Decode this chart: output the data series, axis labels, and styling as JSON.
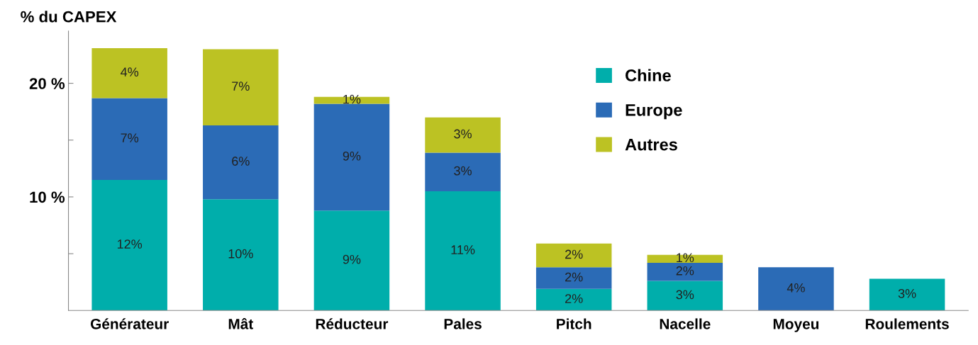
{
  "chart_data": {
    "type": "bar",
    "stacked": true,
    "ylabel": "% du CAPEX",
    "categories": [
      "Générateur",
      "Mât",
      "Réducteur",
      "Pales",
      "Pitch",
      "Nacelle",
      "Moyeu",
      "Roulements"
    ],
    "series": [
      {
        "name": "Chine",
        "color": "#00aeab",
        "values": [
          11.5,
          9.8,
          8.8,
          10.5,
          1.9,
          2.6,
          null,
          2.8
        ],
        "value_labels": [
          "12%",
          "10%",
          "9%",
          "11%",
          "2%",
          "3%",
          null,
          "3%"
        ]
      },
      {
        "name": "Europe",
        "color": "#2b6bb6",
        "values": [
          7.2,
          6.5,
          9.4,
          3.4,
          1.9,
          1.6,
          3.8,
          null
        ],
        "value_labels": [
          "7%",
          "6%",
          "9%",
          "3%",
          "2%",
          "2%",
          "4%",
          null
        ]
      },
      {
        "name": "Autres",
        "color": "#bcc223",
        "values": [
          4.4,
          6.7,
          0.6,
          3.1,
          2.1,
          0.7,
          null,
          null
        ],
        "value_labels": [
          "4%",
          "7%",
          "1%",
          "3%",
          "2%",
          "1%",
          null,
          null
        ]
      }
    ],
    "ylim": [
      0,
      24.6
    ],
    "yticks": [
      {
        "value": 5,
        "label": null
      },
      {
        "value": 10,
        "label": "10 %"
      },
      {
        "value": 15,
        "label": null
      },
      {
        "value": 20,
        "label": "20 %"
      }
    ],
    "grid": false,
    "legend": "top right"
  }
}
